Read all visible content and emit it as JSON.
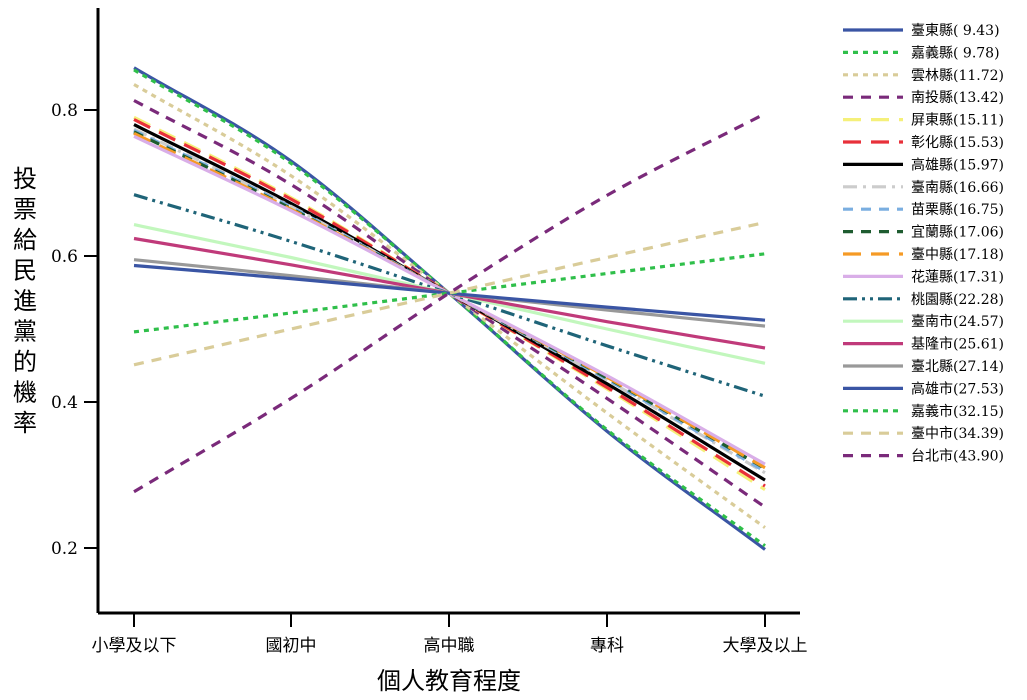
{
  "chart_data": {
    "type": "line",
    "title": "",
    "xlabel": "個人教育程度",
    "ylabel": "投票給民進黨的機率",
    "categories": [
      "小學及以下",
      "國初中",
      "高中職",
      "專科",
      "大學及以上"
    ],
    "ylim": [
      0.1,
      0.95
    ],
    "yticks": [
      0.2,
      0.4,
      0.6,
      0.8
    ],
    "grid": false,
    "legend_position": "right",
    "series": [
      {
        "name": "臺東縣( 9.43)",
        "color": "#3a55a4",
        "dash": "solid",
        "values": [
          0.858,
          0.73,
          0.549,
          0.36,
          0.198
        ]
      },
      {
        "name": "嘉義縣( 9.78)",
        "color": "#2fbf4a",
        "dash": "dot",
        "values": [
          0.855,
          0.727,
          0.549,
          0.362,
          0.203
        ]
      },
      {
        "name": "雲林縣(11.72)",
        "color": "#d9cc99",
        "dash": "dot",
        "values": [
          0.835,
          0.71,
          0.549,
          0.385,
          0.228
        ]
      },
      {
        "name": "南投縣(13.42)",
        "color": "#7a2a7a",
        "dash": "dash",
        "values": [
          0.813,
          0.698,
          0.549,
          0.405,
          0.256
        ]
      },
      {
        "name": "屏東縣(15.11)",
        "color": "#f5f07a",
        "dash": "longdash",
        "values": [
          0.79,
          0.68,
          0.549,
          0.418,
          0.28
        ]
      },
      {
        "name": "彰化縣(15.53)",
        "color": "#e8303a",
        "dash": "longdash",
        "values": [
          0.787,
          0.678,
          0.549,
          0.42,
          0.285
        ]
      },
      {
        "name": "高雄縣(15.97)",
        "color": "#000000",
        "dash": "solid",
        "values": [
          0.78,
          0.672,
          0.549,
          0.425,
          0.293
        ]
      },
      {
        "name": "臺南縣(16.66)",
        "color": "#cccccc",
        "dash": "dashdot",
        "values": [
          0.774,
          0.668,
          0.549,
          0.43,
          0.303
        ]
      },
      {
        "name": "苗栗縣(16.75)",
        "color": "#7aaee0",
        "dash": "dash",
        "values": [
          0.772,
          0.667,
          0.549,
          0.431,
          0.305
        ]
      },
      {
        "name": "宜蘭縣(17.06)",
        "color": "#1e5c30",
        "dash": "dash",
        "values": [
          0.77,
          0.665,
          0.549,
          0.433,
          0.309
        ]
      },
      {
        "name": "臺中縣(17.18)",
        "color": "#f59a25",
        "dash": "longdash",
        "values": [
          0.768,
          0.664,
          0.549,
          0.434,
          0.31
        ]
      },
      {
        "name": "花蓮縣(17.31)",
        "color": "#d9aee8",
        "dash": "solid",
        "values": [
          0.764,
          0.662,
          0.549,
          0.436,
          0.315
        ]
      },
      {
        "name": "桃園縣(22.28)",
        "color": "#1f6478",
        "dash": "dashdotdot",
        "values": [
          0.684,
          0.62,
          0.549,
          0.477,
          0.408
        ]
      },
      {
        "name": "臺南市(24.57)",
        "color": "#c2f7bd",
        "dash": "solid",
        "values": [
          0.643,
          0.598,
          0.549,
          0.5,
          0.453
        ]
      },
      {
        "name": "基隆市(25.61)",
        "color": "#c03a7a",
        "dash": "solid",
        "values": [
          0.624,
          0.588,
          0.549,
          0.51,
          0.474
        ]
      },
      {
        "name": "臺北縣(27.14)",
        "color": "#999999",
        "dash": "solid",
        "values": [
          0.595,
          0.573,
          0.549,
          0.526,
          0.504
        ]
      },
      {
        "name": "高雄市(27.53)",
        "color": "#3a55a4",
        "dash": "solid",
        "values": [
          0.587,
          0.569,
          0.549,
          0.53,
          0.512
        ]
      },
      {
        "name": "嘉義市(32.15)",
        "color": "#2fbf4a",
        "dash": "dot",
        "values": [
          0.496,
          0.522,
          0.549,
          0.576,
          0.603
        ]
      },
      {
        "name": "臺中市(34.39)",
        "color": "#d9cc99",
        "dash": "dash",
        "values": [
          0.451,
          0.5,
          0.549,
          0.598,
          0.646
        ]
      },
      {
        "name": "台北市(43.90)",
        "color": "#7a2a7a",
        "dash": "dash",
        "values": [
          0.277,
          0.405,
          0.549,
          0.683,
          0.795
        ]
      }
    ]
  }
}
